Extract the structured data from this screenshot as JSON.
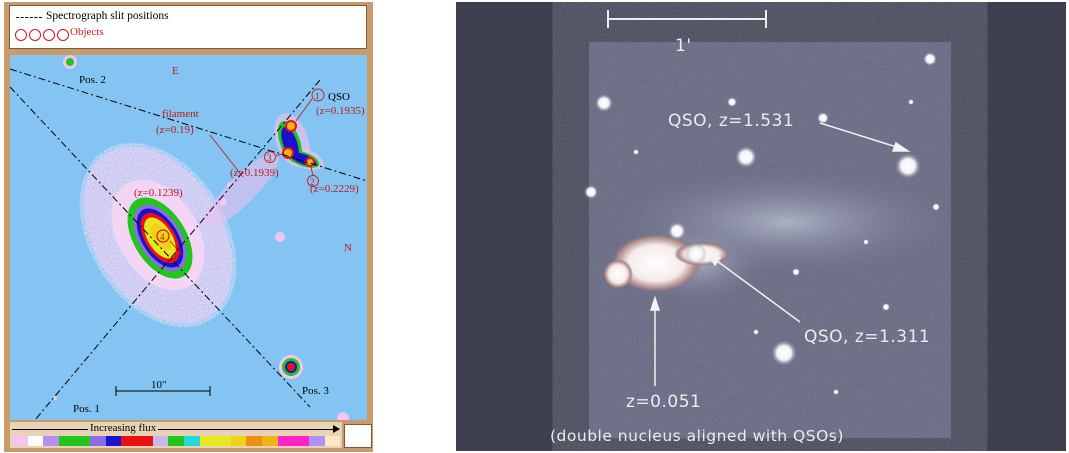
{
  "left_figure": {
    "legend": {
      "slit_label": "Spectrograph slit positions",
      "objects_label": "Objects",
      "object_markers": [
        "1",
        "2",
        "3",
        "4"
      ]
    },
    "compass": {
      "east": "E",
      "north": "N"
    },
    "positions": {
      "pos1": "Pos. 1",
      "pos2": "Pos. 2",
      "pos3": "Pos. 3"
    },
    "annotations": {
      "qso_label": "QSO",
      "qso_z": "(z=0.1935)",
      "filament_label": "filament",
      "filament_z": "(z=0.19)",
      "obj3_z": "(z=0.1939)",
      "obj2_z": "(z=0.2229)",
      "galaxy_z": "(z=0.1239)",
      "marker_1": "1",
      "marker_2": "2",
      "marker_3": "3",
      "marker_4": "4"
    },
    "scale_bar_label": "10\"",
    "flux_label": "Increasing flux",
    "colorbar_colors": [
      "#f2c6ee",
      "#ffffff",
      "#b98cf0",
      "#24c41e",
      "#24c41e",
      "#8a6ce6",
      "#1a10d0",
      "#ee1010",
      "#ee1010",
      "#c9b8ee",
      "#24c41e",
      "#22d8d8",
      "#e8e820",
      "#e8e820",
      "#f0d018",
      "#f08c18",
      "#f0b418",
      "#ff20c8",
      "#ff20c8",
      "#b090ff",
      "#ffe8c8"
    ]
  },
  "right_figure": {
    "scale_label": "1'",
    "qso_upper": "QSO, z=1.531",
    "qso_lower": "QSO, z=1.311",
    "galaxy_z": "z=0.051",
    "caption": "(double nucleus aligned with QSOs)"
  }
}
